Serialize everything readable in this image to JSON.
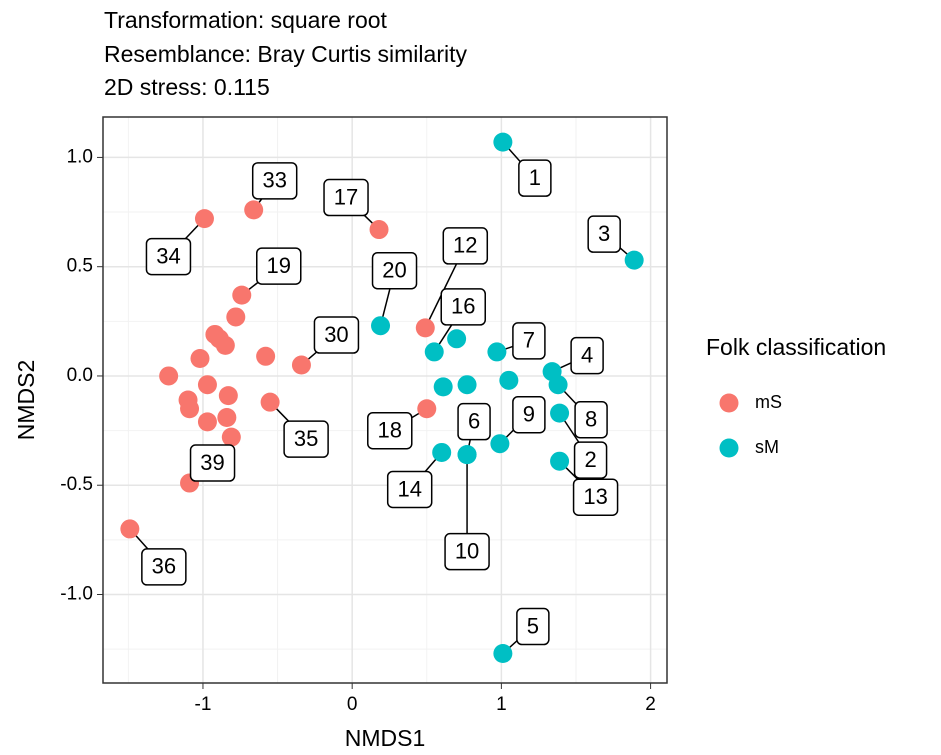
{
  "chart_data": {
    "type": "scatter",
    "title_lines": [
      "Transformation: square root",
      "Resemblance: Bray Curtis similarity",
      "2D stress: 0.115"
    ],
    "x_label": "NMDS1",
    "y_label": "NMDS2",
    "legend_title": "Folk classification",
    "xlim": [
      -1.67,
      2.11
    ],
    "ylim": [
      -1.405,
      1.185
    ],
    "xticks": [
      -1,
      0,
      1,
      2
    ],
    "yticks": [
      {
        "value": -1.0,
        "label": "-1.0"
      },
      -0.5,
      {
        "value": 0.0,
        "label": "0.0"
      },
      0.5,
      {
        "value": 1.0,
        "label": "1.0"
      }
    ],
    "grid": true,
    "series": [
      {
        "name": "mS",
        "color": "#F8766D",
        "x": [
          -0.99,
          -0.66,
          0.18,
          -0.74,
          -0.78,
          -0.92,
          -0.89,
          -0.85,
          -1.02,
          -0.34,
          -0.58,
          -1.23,
          -0.97,
          -0.83,
          -0.55,
          -1.1,
          -1.09,
          -0.97,
          -0.84,
          -0.81,
          -1.09,
          -1.49,
          0.49,
          0.5
        ],
        "values": [
          0.72,
          0.76,
          0.67,
          0.37,
          0.27,
          0.19,
          0.17,
          0.14,
          0.08,
          0.05,
          0.09,
          0.0,
          -0.04,
          -0.09,
          -0.12,
          -0.11,
          -0.15,
          -0.21,
          -0.19,
          -0.28,
          -0.49,
          -0.7,
          0.22,
          -0.15
        ],
        "labels": [
          "34",
          "33",
          "17",
          "19",
          null,
          null,
          null,
          null,
          null,
          "30",
          null,
          null,
          null,
          null,
          "35",
          null,
          null,
          null,
          null,
          null,
          "39",
          "36",
          "12",
          "18"
        ]
      },
      {
        "name": "sM",
        "color": "#00BFC4",
        "x": [
          1.01,
          1.89,
          0.19,
          0.55,
          0.7,
          0.97,
          1.05,
          1.34,
          1.38,
          0.61,
          0.77,
          0.99,
          1.39,
          1.39,
          0.6,
          0.77,
          0.77,
          1.01
        ],
        "values": [
          1.07,
          0.53,
          0.23,
          0.11,
          0.17,
          0.11,
          -0.02,
          0.02,
          -0.04,
          -0.05,
          -0.04,
          -0.31,
          -0.17,
          -0.39,
          -0.35,
          -0.36,
          -0.36,
          -1.27
        ],
        "labels": [
          "1",
          "3",
          "20",
          "16",
          null,
          "7",
          null,
          "4",
          "8",
          null,
          null,
          "9",
          "2",
          "13",
          "14",
          "6",
          "10",
          "5"
        ]
      }
    ]
  }
}
